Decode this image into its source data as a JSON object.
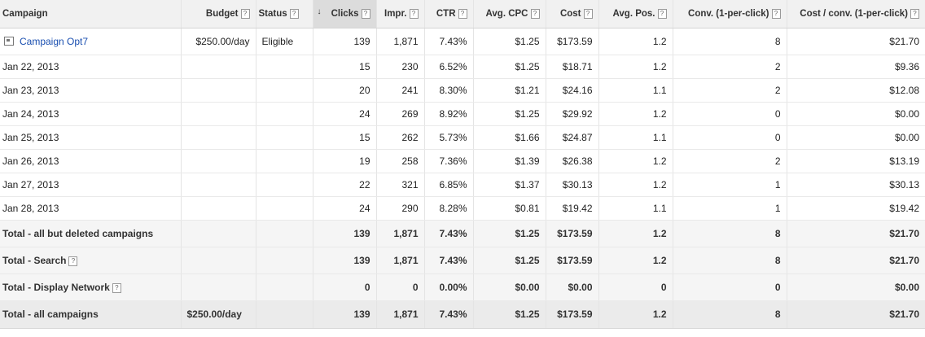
{
  "header": {
    "campaign": "Campaign",
    "budget": "Budget",
    "status": "Status",
    "clicks": "Clicks",
    "impr": "Impr.",
    "ctr": "CTR",
    "avg_cpc": "Avg. CPC",
    "cost": "Cost",
    "avg_pos": "Avg. Pos.",
    "conv": "Conv. (1-per-click)",
    "cost_conv": "Cost / conv. (1-per-click)",
    "help_glyph": "?",
    "sort_glyph": "↓"
  },
  "campaign": {
    "name": "Campaign Opt7",
    "budget": "$250.00/day",
    "status": "Eligible",
    "clicks": "139",
    "impr": "1,871",
    "ctr": "7.43%",
    "avg_cpc": "$1.25",
    "cost": "$173.59",
    "avg_pos": "1.2",
    "conv": "8",
    "cost_conv": "$21.70"
  },
  "days": [
    {
      "date": "Jan 22, 2013",
      "clicks": "15",
      "impr": "230",
      "ctr": "6.52%",
      "avg_cpc": "$1.25",
      "cost": "$18.71",
      "avg_pos": "1.2",
      "conv": "2",
      "cost_conv": "$9.36"
    },
    {
      "date": "Jan 23, 2013",
      "clicks": "20",
      "impr": "241",
      "ctr": "8.30%",
      "avg_cpc": "$1.21",
      "cost": "$24.16",
      "avg_pos": "1.1",
      "conv": "2",
      "cost_conv": "$12.08"
    },
    {
      "date": "Jan 24, 2013",
      "clicks": "24",
      "impr": "269",
      "ctr": "8.92%",
      "avg_cpc": "$1.25",
      "cost": "$29.92",
      "avg_pos": "1.2",
      "conv": "0",
      "cost_conv": "$0.00"
    },
    {
      "date": "Jan 25, 2013",
      "clicks": "15",
      "impr": "262",
      "ctr": "5.73%",
      "avg_cpc": "$1.66",
      "cost": "$24.87",
      "avg_pos": "1.1",
      "conv": "0",
      "cost_conv": "$0.00"
    },
    {
      "date": "Jan 26, 2013",
      "clicks": "19",
      "impr": "258",
      "ctr": "7.36%",
      "avg_cpc": "$1.39",
      "cost": "$26.38",
      "avg_pos": "1.2",
      "conv": "2",
      "cost_conv": "$13.19"
    },
    {
      "date": "Jan 27, 2013",
      "clicks": "22",
      "impr": "321",
      "ctr": "6.85%",
      "avg_cpc": "$1.37",
      "cost": "$30.13",
      "avg_pos": "1.2",
      "conv": "1",
      "cost_conv": "$30.13"
    },
    {
      "date": "Jan 28, 2013",
      "clicks": "24",
      "impr": "290",
      "ctr": "8.28%",
      "avg_cpc": "$0.81",
      "cost": "$19.42",
      "avg_pos": "1.1",
      "conv": "1",
      "cost_conv": "$19.42"
    }
  ],
  "totals": [
    {
      "label": "Total - all but deleted campaigns",
      "help": false,
      "clicks": "139",
      "impr": "1,871",
      "ctr": "7.43%",
      "avg_cpc": "$1.25",
      "cost": "$173.59",
      "avg_pos": "1.2",
      "conv": "8",
      "cost_conv": "$21.70"
    },
    {
      "label": "Total - Search",
      "help": true,
      "clicks": "139",
      "impr": "1,871",
      "ctr": "7.43%",
      "avg_cpc": "$1.25",
      "cost": "$173.59",
      "avg_pos": "1.2",
      "conv": "8",
      "cost_conv": "$21.70"
    },
    {
      "label": "Total - Display Network",
      "help": true,
      "clicks": "0",
      "impr": "0",
      "ctr": "0.00%",
      "avg_cpc": "$0.00",
      "cost": "$0.00",
      "avg_pos": "0",
      "conv": "0",
      "cost_conv": "$0.00"
    }
  ],
  "grand_total": {
    "label": "Total - all campaigns",
    "budget": "$250.00/day",
    "clicks": "139",
    "impr": "1,871",
    "ctr": "7.43%",
    "avg_cpc": "$1.25",
    "cost": "$173.59",
    "avg_pos": "1.2",
    "conv": "8",
    "cost_conv": "$21.70"
  }
}
